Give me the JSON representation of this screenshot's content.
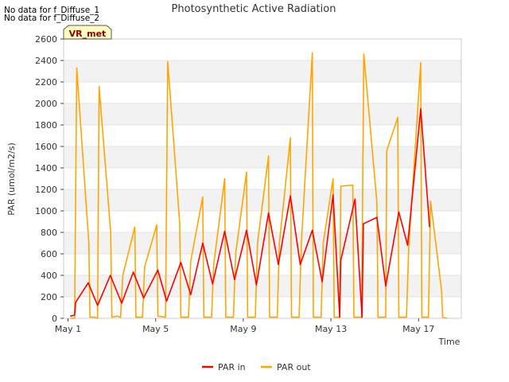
{
  "notes": [
    "No data for f_Diffuse_1",
    "No data for f_Diffuse_2"
  ],
  "badge": "VR_met",
  "chart_data": {
    "type": "line",
    "title": "Photosynthetic Active Radiation",
    "xlabel": "Time",
    "ylabel": "PAR (umol/m2/s)",
    "xlim": [
      0.8,
      18.95
    ],
    "ylim": [
      0,
      2600
    ],
    "yticks": [
      0,
      200,
      400,
      600,
      800,
      1000,
      1200,
      1400,
      1600,
      1800,
      2000,
      2200,
      2400,
      2600
    ],
    "xticks": [
      {
        "x": 1,
        "label": "May 1"
      },
      {
        "x": 5,
        "label": "May 5"
      },
      {
        "x": 9,
        "label": "May 9"
      },
      {
        "x": 13,
        "label": "May 13"
      },
      {
        "x": 17,
        "label": "May 17"
      }
    ],
    "colors": {
      "par_in": "#ff0000",
      "par_out": "#ffa500",
      "band": "#f2f2f2",
      "grid": "#dddddd"
    },
    "series": [
      {
        "name": "PAR in",
        "color": "#ff0000",
        "points": [
          [
            1.1,
            20
          ],
          [
            1.3,
            30
          ],
          [
            1.35,
            150
          ],
          [
            1.92,
            330
          ],
          [
            2.35,
            120
          ],
          [
            2.93,
            400
          ],
          [
            3.45,
            140
          ],
          [
            3.98,
            430
          ],
          [
            4.45,
            190
          ],
          [
            5.1,
            450
          ],
          [
            5.5,
            160
          ],
          [
            6.15,
            520
          ],
          [
            6.6,
            220
          ],
          [
            7.15,
            700
          ],
          [
            7.6,
            320
          ],
          [
            8.15,
            810
          ],
          [
            8.6,
            360
          ],
          [
            9.15,
            820
          ],
          [
            9.6,
            310
          ],
          [
            10.15,
            980
          ],
          [
            10.6,
            500
          ],
          [
            11.15,
            1140
          ],
          [
            11.6,
            500
          ],
          [
            12.15,
            820
          ],
          [
            12.6,
            340
          ],
          [
            13.1,
            1150
          ],
          [
            13.4,
            10
          ],
          [
            13.45,
            540
          ],
          [
            14.1,
            1110
          ],
          [
            14.42,
            10
          ],
          [
            14.48,
            880
          ],
          [
            15.1,
            940
          ],
          [
            15.5,
            300
          ],
          [
            16.1,
            990
          ],
          [
            16.5,
            680
          ],
          [
            17.1,
            1950
          ],
          [
            17.5,
            850
          ]
        ]
      },
      {
        "name": "PAR out",
        "color": "#ffa500",
        "points": [
          [
            1.1,
            0
          ],
          [
            1.3,
            0
          ],
          [
            1.4,
            2330
          ],
          [
            1.95,
            700
          ],
          [
            2.0,
            10
          ],
          [
            2.2,
            10
          ],
          [
            2.35,
            0
          ],
          [
            2.42,
            2160
          ],
          [
            2.95,
            800
          ],
          [
            3.0,
            10
          ],
          [
            3.25,
            20
          ],
          [
            3.4,
            10
          ],
          [
            3.5,
            400
          ],
          [
            4.05,
            850
          ],
          [
            4.1,
            10
          ],
          [
            4.4,
            10
          ],
          [
            4.5,
            480
          ],
          [
            5.05,
            870
          ],
          [
            5.1,
            20
          ],
          [
            5.45,
            10
          ],
          [
            5.55,
            2390
          ],
          [
            6.1,
            880
          ],
          [
            6.15,
            10
          ],
          [
            6.5,
            10
          ],
          [
            6.6,
            530
          ],
          [
            7.15,
            1130
          ],
          [
            7.2,
            10
          ],
          [
            7.55,
            10
          ],
          [
            7.65,
            500
          ],
          [
            8.15,
            1300
          ],
          [
            8.2,
            10
          ],
          [
            8.55,
            10
          ],
          [
            8.65,
            600
          ],
          [
            9.15,
            1360
          ],
          [
            9.2,
            10
          ],
          [
            9.55,
            10
          ],
          [
            9.65,
            700
          ],
          [
            10.15,
            1510
          ],
          [
            10.2,
            10
          ],
          [
            10.55,
            10
          ],
          [
            10.65,
            700
          ],
          [
            11.15,
            1680
          ],
          [
            11.2,
            10
          ],
          [
            11.55,
            10
          ],
          [
            11.65,
            700
          ],
          [
            12.15,
            2470
          ],
          [
            12.2,
            10
          ],
          [
            12.55,
            10
          ],
          [
            12.65,
            700
          ],
          [
            13.1,
            1300
          ],
          [
            13.15,
            10
          ],
          [
            13.4,
            10
          ],
          [
            13.45,
            1230
          ],
          [
            14.0,
            1240
          ],
          [
            14.05,
            10
          ],
          [
            14.4,
            10
          ],
          [
            14.5,
            2460
          ],
          [
            15.1,
            1080
          ],
          [
            15.15,
            10
          ],
          [
            15.5,
            10
          ],
          [
            15.55,
            1560
          ],
          [
            16.05,
            1870
          ],
          [
            16.1,
            10
          ],
          [
            16.45,
            10
          ],
          [
            16.55,
            650
          ],
          [
            17.1,
            2380
          ],
          [
            17.15,
            10
          ],
          [
            17.45,
            10
          ],
          [
            17.55,
            1090
          ],
          [
            18.05,
            260
          ],
          [
            18.1,
            10
          ],
          [
            18.3,
            0
          ]
        ]
      }
    ]
  }
}
